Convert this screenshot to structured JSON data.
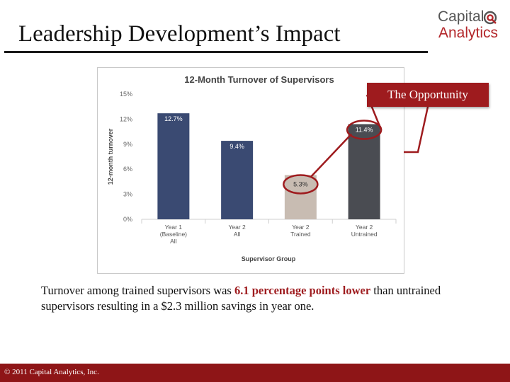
{
  "slide": {
    "title": "Leadership Development’s Impact",
    "logo_line1": "Capital",
    "logo_line2": "Analytics",
    "callout": "The Opportunity",
    "summary_part1": "Turnover among trained supervisors was ",
    "summary_highlight": "6.1 percentage points lower",
    "summary_part2": " than untrained supervisors resulting in a $2.3 million savings in year one.",
    "footer": "© 2011 Capital Analytics, Inc."
  },
  "colors": {
    "accent": "#9e1b1e",
    "footer_bg": "#8e1517",
    "bar_navy": "#3a4a72",
    "bar_trained": "#c8bcb2",
    "bar_untrained": "#4a4c52"
  },
  "chart_data": {
    "type": "bar",
    "title": "12-Month Turnover of Supervisors",
    "xlabel": "Supervisor Group",
    "ylabel": "12-month turnover",
    "categories": [
      [
        "Year 1",
        "(Baseline)",
        "All"
      ],
      [
        "Year 2",
        "All"
      ],
      [
        "Year 2",
        "Trained"
      ],
      [
        "Year 2",
        "Untrained"
      ]
    ],
    "values": [
      12.7,
      9.4,
      5.3,
      11.4
    ],
    "value_labels": [
      "12.7%",
      "9.4%",
      "5.3%",
      "11.4%"
    ],
    "bar_colors": [
      "#3a4a72",
      "#3a4a72",
      "#c8bcb2",
      "#4a4c52"
    ],
    "value_label_colors": [
      "#ffffff",
      "#ffffff",
      "#333333",
      "#ffffff"
    ],
    "highlighted": [
      2,
      3
    ],
    "ylim": [
      0,
      15
    ],
    "yticks": [
      0,
      3,
      6,
      9,
      12,
      15
    ],
    "ytick_labels": [
      "0%",
      "3%",
      "6%",
      "9%",
      "12%",
      "15%"
    ],
    "grid": false,
    "legend": "none"
  }
}
